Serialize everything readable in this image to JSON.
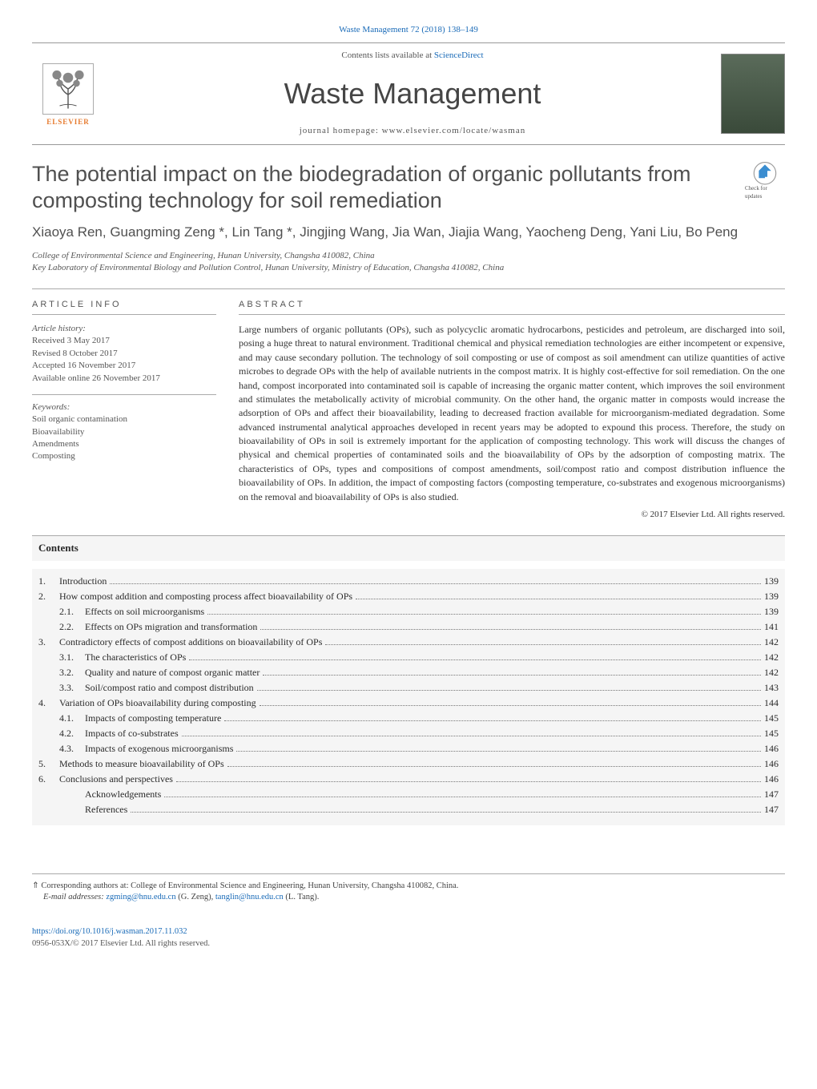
{
  "journal_ref": "Waste Management 72 (2018) 138–149",
  "contents_available": "Contents lists available at",
  "sciencedirect": "ScienceDirect",
  "journal_name": "Waste Management",
  "homepage_label": "journal homepage: www.elsevier.com/locate/wasman",
  "publisher": "ELSEVIER",
  "updates_label": "Check for updates",
  "title": "The potential impact on the biodegradation of organic pollutants from composting technology for soil remediation",
  "authors_line": "Xiaoya Ren, Guangming Zeng *, Lin Tang *, Jingjing Wang, Jia Wan, Jiajia Wang, Yaocheng Deng, Yani Liu, Bo Peng",
  "affiliations": [
    "College of Environmental Science and Engineering, Hunan University, Changsha 410082, China",
    "Key Laboratory of Environmental Biology and Pollution Control, Hunan University, Ministry of Education, Changsha 410082, China"
  ],
  "article_info": {
    "heading": "ARTICLE INFO",
    "history_label": "Article history:",
    "history": [
      "Received 3 May 2017",
      "Revised 8 October 2017",
      "Accepted 16 November 2017",
      "Available online 26 November 2017"
    ],
    "keywords_label": "Keywords:",
    "keywords": [
      "Soil organic contamination",
      "Bioavailability",
      "Amendments",
      "Composting"
    ]
  },
  "abstract": {
    "heading": "ABSTRACT",
    "text": "Large numbers of organic pollutants (OPs), such as polycyclic aromatic hydrocarbons, pesticides and petroleum, are discharged into soil, posing a huge threat to natural environment. Traditional chemical and physical remediation technologies are either incompetent or expensive, and may cause secondary pollution. The technology of soil composting or use of compost as soil amendment can utilize quantities of active microbes to degrade OPs with the help of available nutrients in the compost matrix. It is highly cost-effective for soil remediation. On the one hand, compost incorporated into contaminated soil is capable of increasing the organic matter content, which improves the soil environment and stimulates the metabolically activity of microbial community. On the other hand, the organic matter in composts would increase the adsorption of OPs and affect their bioavailability, leading to decreased fraction available for microorganism-mediated degradation. Some advanced instrumental analytical approaches developed in recent years may be adopted to expound this process. Therefore, the study on bioavailability of OPs in soil is extremely important for the application of composting technology. This work will discuss the changes of physical and chemical properties of contaminated soils and the bioavailability of OPs by the adsorption of composting matrix. The characteristics of OPs, types and compositions of compost amendments, soil/compost ratio and compost distribution influence the bioavailability of OPs. In addition, the impact of composting factors (composting temperature, co-substrates and exogenous microorganisms) on the removal and bioavailability of OPs is also studied.",
    "copyright": "© 2017 Elsevier Ltd. All rights reserved."
  },
  "contents_heading": "Contents",
  "toc": [
    {
      "num": "1.",
      "label": "Introduction",
      "page": "139",
      "sub": false
    },
    {
      "num": "2.",
      "label": "How compost addition and composting process affect bioavailability of OPs",
      "page": "139",
      "sub": false
    },
    {
      "num": "2.1.",
      "label": "Effects on soil microorganisms",
      "page": "139",
      "sub": true
    },
    {
      "num": "2.2.",
      "label": "Effects on OPs migration and transformation",
      "page": "141",
      "sub": true
    },
    {
      "num": "3.",
      "label": "Contradictory effects of compost additions on bioavailability of OPs",
      "page": "142",
      "sub": false
    },
    {
      "num": "3.1.",
      "label": "The characteristics of OPs",
      "page": "142",
      "sub": true
    },
    {
      "num": "3.2.",
      "label": "Quality and nature of compost organic matter",
      "page": "142",
      "sub": true
    },
    {
      "num": "3.3.",
      "label": "Soil/compost ratio and compost distribution",
      "page": "143",
      "sub": true
    },
    {
      "num": "4.",
      "label": "Variation of OPs bioavailability during composting",
      "page": "144",
      "sub": false
    },
    {
      "num": "4.1.",
      "label": "Impacts of composting temperature",
      "page": "145",
      "sub": true
    },
    {
      "num": "4.2.",
      "label": "Impacts of co-substrates",
      "page": "145",
      "sub": true
    },
    {
      "num": "4.3.",
      "label": "Impacts of exogenous microorganisms",
      "page": "146",
      "sub": true
    },
    {
      "num": "5.",
      "label": "Methods to measure bioavailability of OPs",
      "page": "146",
      "sub": false
    },
    {
      "num": "6.",
      "label": "Conclusions and perspectives",
      "page": "146",
      "sub": false
    },
    {
      "num": "",
      "label": "Acknowledgements",
      "page": "147",
      "sub": true
    },
    {
      "num": "",
      "label": "References",
      "page": "147",
      "sub": true
    }
  ],
  "footer": {
    "corresponding": "⇑ Corresponding authors at: College of Environmental Science and Engineering, Hunan University, Changsha 410082, China.",
    "emails_label": "E-mail addresses:",
    "email1": "zgming@hnu.edu.cn",
    "email1_name": "(G. Zeng),",
    "email2": "tanglin@hnu.edu.cn",
    "email2_name": "(L. Tang).",
    "doi": "https://doi.org/10.1016/j.wasman.2017.11.032",
    "issn": "0956-053X/© 2017 Elsevier Ltd. All rights reserved."
  },
  "colors": {
    "link": "#1a6bb8",
    "orange": "#e67a2e",
    "text": "#2a2a2a",
    "gray": "#555555"
  }
}
